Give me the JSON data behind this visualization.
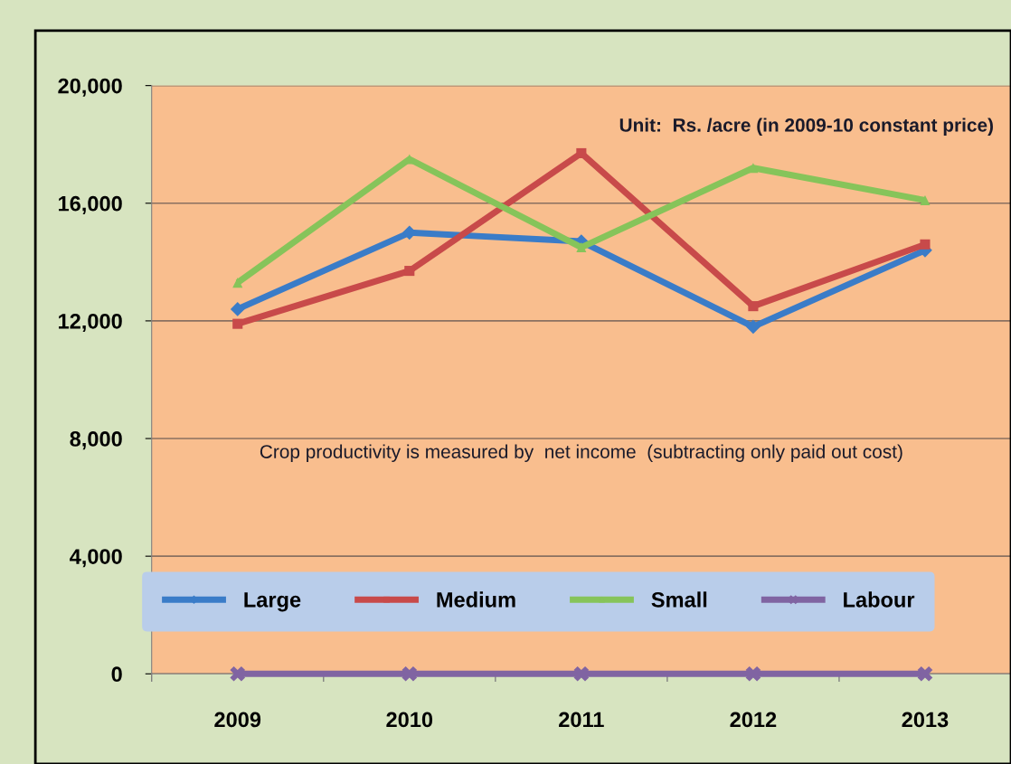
{
  "chart_data": {
    "type": "line",
    "categories": [
      "2009",
      "2010",
      "2011",
      "2012",
      "2013"
    ],
    "series": [
      {
        "name": "Large",
        "color": "#3a7cc8",
        "marker": "diamond",
        "values": [
          12400,
          15000,
          14700,
          11800,
          14400
        ]
      },
      {
        "name": "Medium",
        "color": "#c84a4a",
        "marker": "square",
        "values": [
          11900,
          13700,
          17700,
          12500,
          14600
        ]
      },
      {
        "name": "Small",
        "color": "#86c45a",
        "marker": "triangle",
        "values": [
          13300,
          17500,
          14500,
          17200,
          16100
        ]
      },
      {
        "name": "Labour",
        "color": "#8064a2",
        "marker": "cross",
        "values": [
          0,
          0,
          0,
          0,
          0
        ]
      }
    ],
    "ylim": [
      0,
      20000
    ],
    "yticks": [
      {
        "value": 0,
        "label": "0"
      },
      {
        "value": 4000,
        "label": "4,000"
      },
      {
        "value": 8000,
        "label": "8,000"
      },
      {
        "value": 12000,
        "label": "12,000"
      },
      {
        "value": 16000,
        "label": "16,000"
      },
      {
        "value": 20000,
        "label": "20,000"
      }
    ],
    "grid": "y",
    "legend": "bottom",
    "annotations": [
      "Unit:  Rs. /acre (in 2009-10 constant price)",
      "Crop productivity is measured by  net income  (subtracting only paid out cost)"
    ]
  }
}
